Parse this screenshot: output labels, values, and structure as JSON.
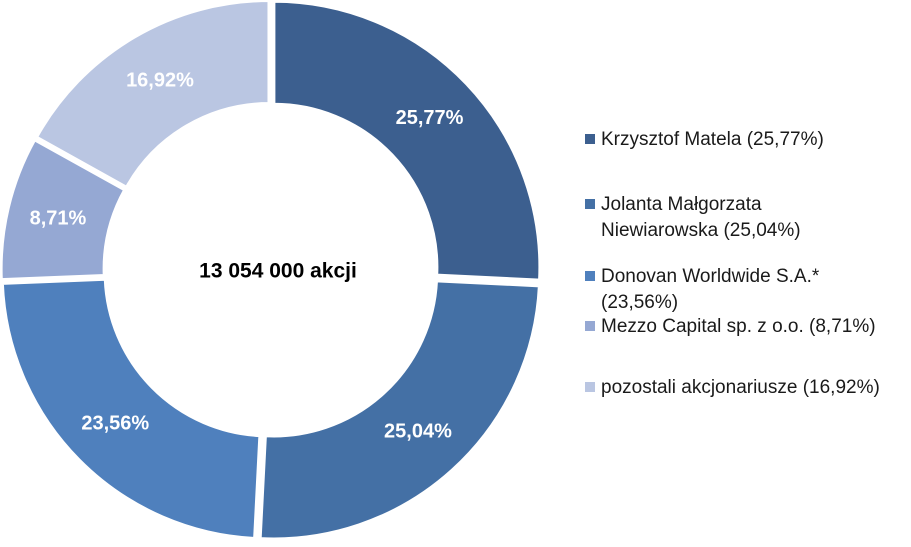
{
  "chart_data": {
    "type": "pie",
    "variant": "donut",
    "center_text": "13 054 000 akcji",
    "slices": [
      {
        "legend_lines": [
          "Krzysztof Matela (25,77%)"
        ],
        "value": 25.77,
        "label": "25,77%",
        "color": "#3c5f8f"
      },
      {
        "legend_lines": [
          "Jolanta Małgorzata",
          "Niewiarowska (25,04%)"
        ],
        "value": 25.04,
        "label": "25,04%",
        "color": "#4470a5"
      },
      {
        "legend_lines": [
          "Donovan Worldwide S.A.*",
          "(23,56%)"
        ],
        "value": 23.56,
        "label": "23,56%",
        "color": "#4f80bd"
      },
      {
        "legend_lines": [
          "Mezzo Capital sp. z o.o. (8,71%)"
        ],
        "value": 8.71,
        "label": "8,71%",
        "color": "#95a8d3"
      },
      {
        "legend_lines": [
          "pozostali akcjonariusze (16,92%)"
        ],
        "value": 16.92,
        "label": "16,92%",
        "color": "#bac6e2"
      }
    ],
    "legend_position": "right"
  }
}
